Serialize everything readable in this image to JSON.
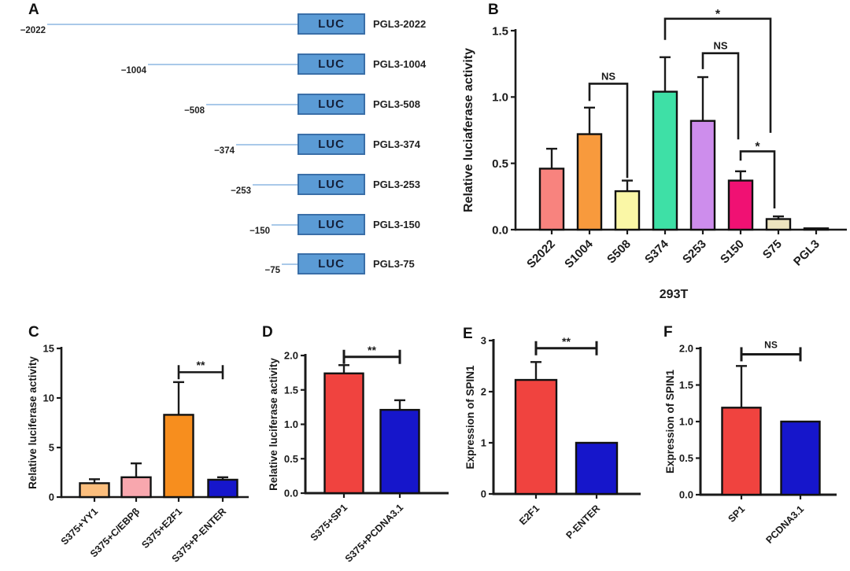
{
  "panel_a": {
    "label": "A",
    "gene_box_text": "LUC",
    "constructs": [
      {
        "position": "−2022",
        "name": "PGL3-2022"
      },
      {
        "position": "−1004",
        "name": "PGL3-1004"
      },
      {
        "position": "−508",
        "name": "PGL3-508"
      },
      {
        "position": "−374",
        "name": "PGL3-374"
      },
      {
        "position": "−253",
        "name": "PGL3-253"
      },
      {
        "position": "−150",
        "name": "PGL3-150"
      },
      {
        "position": "−75",
        "name": "PGL3-75"
      }
    ],
    "box_fill": "#5b9bd5",
    "box_border": "#3a6fa8",
    "line_color": "#a9c9e9"
  },
  "chart_data": [
    {
      "panel_label": "B",
      "type": "bar",
      "title": "",
      "xlabel": "293T",
      "ylabel": "Relative luciaferase activity",
      "categories": [
        "S2022",
        "S1004",
        "S508",
        "S374",
        "S253",
        "S150",
        "S75",
        "PGL3"
      ],
      "values": [
        0.46,
        0.72,
        0.29,
        1.04,
        0.82,
        0.37,
        0.08,
        0.01
      ],
      "errors": [
        0.15,
        0.2,
        0.08,
        0.26,
        0.33,
        0.07,
        0.02,
        0
      ],
      "colors": [
        "#F8837E",
        "#F89A3D",
        "#FAF7A6",
        "#3EE0A6",
        "#CD8DEC",
        "#F01173",
        "#EDE4BF",
        "#555555"
      ],
      "ylim": [
        0,
        1.5
      ],
      "yticks": [
        "0.0",
        "0.5",
        "1.0",
        "1.5"
      ],
      "grid": false,
      "significance": [
        {
          "from": "S1004",
          "to": "S508",
          "label": "NS"
        },
        {
          "from": "S374",
          "to": "S75",
          "label": "*"
        },
        {
          "from": "S253",
          "to": "S150",
          "label": "NS"
        },
        {
          "from": "S150",
          "to": "S75",
          "label": "*"
        }
      ]
    },
    {
      "panel_label": "C",
      "type": "bar",
      "title": "",
      "xlabel": "",
      "ylabel": "Relative luciferase activity",
      "categories": [
        "S375+YY1",
        "S375+C/EBPβ",
        "S375+E2F1",
        "S375+P-ENTER"
      ],
      "values": [
        1.4,
        2.0,
        8.3,
        1.75
      ],
      "errors": [
        0.4,
        1.4,
        3.3,
        0.25
      ],
      "colors": [
        "#FBBE7D",
        "#F8A7AE",
        "#F78E1E",
        "#1616CB"
      ],
      "ylim": [
        0,
        15
      ],
      "yticks": [
        "0",
        "5",
        "10",
        "15"
      ],
      "grid": false,
      "significance": [
        {
          "from": "S375+E2F1",
          "to": "S375+P-ENTER",
          "label": "**"
        }
      ]
    },
    {
      "panel_label": "D",
      "type": "bar",
      "title": "",
      "xlabel": "",
      "ylabel": "Relative luciferase activity",
      "categories": [
        "S375+SP1",
        "S375+PCDNA3.1"
      ],
      "values": [
        1.74,
        1.21
      ],
      "errors": [
        0.12,
        0.14
      ],
      "colors": [
        "#F0433F",
        "#1616CB"
      ],
      "ylim": [
        0,
        2.0
      ],
      "yticks": [
        "0.0",
        "0.5",
        "1.0",
        "1.5",
        "2.0"
      ],
      "grid": false,
      "significance": [
        {
          "from": "S375+SP1",
          "to": "S375+PCDNA3.1",
          "label": "**"
        }
      ]
    },
    {
      "panel_label": "E",
      "type": "bar",
      "title": "",
      "xlabel": "",
      "ylabel": "Expression of SPIN1",
      "categories": [
        "E2F1",
        "P-ENTER"
      ],
      "values": [
        2.23,
        1.0
      ],
      "errors": [
        0.35,
        0
      ],
      "colors": [
        "#F0433F",
        "#1616CB"
      ],
      "ylim": [
        0,
        3
      ],
      "yticks": [
        "0",
        "1",
        "2",
        "3"
      ],
      "grid": false,
      "significance": [
        {
          "from": "E2F1",
          "to": "P-ENTER",
          "label": "**"
        }
      ]
    },
    {
      "panel_label": "F",
      "type": "bar",
      "title": "",
      "xlabel": "",
      "ylabel": "Expression of SPIN1",
      "categories": [
        "SP1",
        "PCDNA3.1"
      ],
      "values": [
        1.19,
        1.0
      ],
      "errors": [
        0.57,
        0
      ],
      "colors": [
        "#F0433F",
        "#1616CB"
      ],
      "ylim": [
        0,
        2.0
      ],
      "yticks": [
        "0.0",
        "0.5",
        "1.0",
        "1.5",
        "2.0"
      ],
      "grid": false,
      "significance": [
        {
          "from": "SP1",
          "to": "PCDNA3.1",
          "label": "NS"
        }
      ]
    }
  ]
}
